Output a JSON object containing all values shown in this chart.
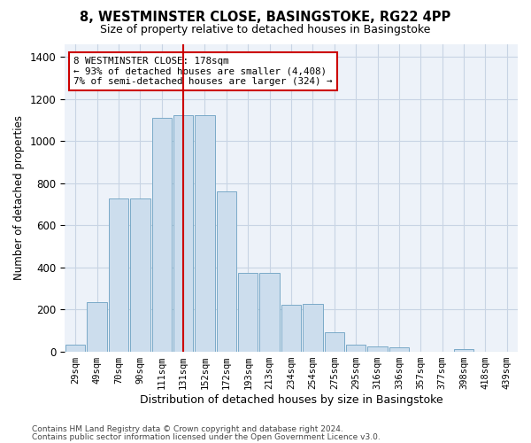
{
  "title": "8, WESTMINSTER CLOSE, BASINGSTOKE, RG22 4PP",
  "subtitle": "Size of property relative to detached houses in Basingstoke",
  "xlabel": "Distribution of detached houses by size in Basingstoke",
  "ylabel": "Number of detached properties",
  "bar_color": "#ccdded",
  "bar_edge_color": "#7aaac8",
  "grid_color": "#c8d4e4",
  "background_color": "#edf2f9",
  "vline_x": 5,
  "vline_color": "#cc0000",
  "categories": [
    "29sqm",
    "49sqm",
    "70sqm",
    "90sqm",
    "111sqm",
    "131sqm",
    "152sqm",
    "172sqm",
    "193sqm",
    "213sqm",
    "234sqm",
    "254sqm",
    "275sqm",
    "295sqm",
    "316sqm",
    "336sqm",
    "357sqm",
    "377sqm",
    "398sqm",
    "418sqm",
    "439sqm"
  ],
  "bar_heights": [
    30,
    235,
    725,
    725,
    1110,
    1125,
    1125,
    760,
    375,
    375,
    220,
    225,
    90,
    30,
    25,
    20,
    0,
    0,
    10,
    0,
    0
  ],
  "ylim": [
    0,
    1460
  ],
  "yticks": [
    0,
    200,
    400,
    600,
    800,
    1000,
    1200,
    1400
  ],
  "annotation_title": "8 WESTMINSTER CLOSE: 178sqm",
  "annotation_line1": "← 93% of detached houses are smaller (4,408)",
  "annotation_line2": "7% of semi-detached houses are larger (324) →",
  "footer1": "Contains HM Land Registry data © Crown copyright and database right 2024.",
  "footer2": "Contains public sector information licensed under the Open Government Licence v3.0."
}
